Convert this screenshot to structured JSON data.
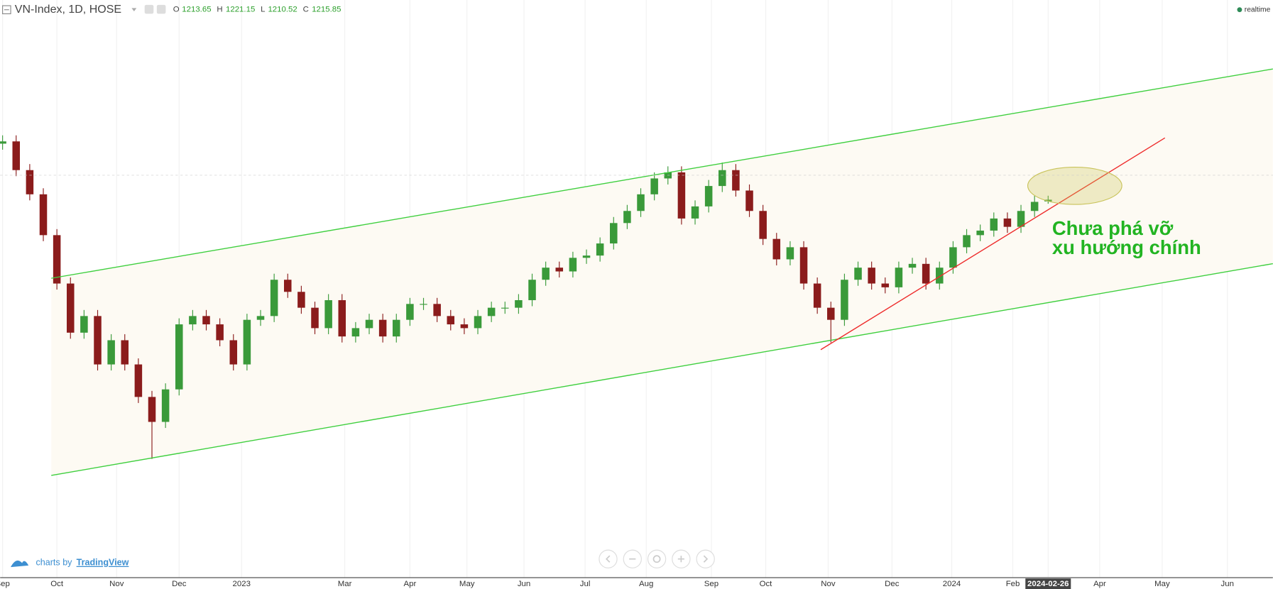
{
  "chart_data": {
    "type": "candlestick",
    "title": "VN-Index, 1D, HOSE",
    "legend_labels": [
      "O",
      "H",
      "L",
      "C"
    ],
    "status": "realtime",
    "annotation": [
      "Chưa phá vỡ",
      "xu hướng chính"
    ],
    "branding": [
      "charts by",
      "TradingView"
    ],
    "up_color": "#3a9a3a",
    "down_color": "#8b1c1c",
    "xlim": [
      -0.18,
      93.55
    ],
    "xticks": [
      {
        "value": 0,
        "label": "Sep"
      },
      {
        "value": 4.0,
        "label": "Oct"
      },
      {
        "value": 8.4,
        "label": "Nov"
      },
      {
        "value": 13.0,
        "label": "Dec"
      },
      {
        "value": 17.6,
        "label": "2023"
      },
      {
        "value": 25.2,
        "label": "Mar"
      },
      {
        "value": 30.0,
        "label": "Apr"
      },
      {
        "value": 34.2,
        "label": "May"
      },
      {
        "value": 38.4,
        "label": "Jun"
      },
      {
        "value": 42.9,
        "label": "Jul"
      },
      {
        "value": 47.4,
        "label": "Aug"
      },
      {
        "value": 52.2,
        "label": "Sep"
      },
      {
        "value": 56.2,
        "label": "Oct"
      },
      {
        "value": 60.8,
        "label": "Nov"
      },
      {
        "value": 65.5,
        "label": "Dec"
      },
      {
        "value": 69.9,
        "label": "2024"
      },
      {
        "value": 74.4,
        "label": "Feb"
      },
      {
        "value": 77,
        "label": "2024-02-26"
      },
      {
        "value": 80.8,
        "label": "Apr"
      },
      {
        "value": 85.4,
        "label": "May"
      },
      {
        "value": 90.2,
        "label": "Jun"
      }
    ],
    "ylim": [
      716,
      1480
    ],
    "grid": true,
    "ohlc": {
      "open": [
        1290,
        1293,
        1255,
        1223,
        1169,
        1105,
        1040,
        1062,
        998,
        1030,
        998,
        955,
        922,
        965,
        1051,
        1062,
        1051,
        1030,
        998,
        1057,
        1062,
        1110,
        1094,
        1073,
        1046,
        1083,
        1035,
        1046,
        1057,
        1035,
        1057,
        1078,
        1078,
        1062,
        1051,
        1046,
        1062,
        1073,
        1073,
        1083,
        1110,
        1126,
        1121,
        1139,
        1142,
        1158,
        1185,
        1201,
        1223,
        1244,
        1252,
        1191,
        1207,
        1234,
        1255,
        1228,
        1201,
        1164,
        1137,
        1153,
        1105,
        1073,
        1057,
        1110,
        1126,
        1105,
        1100,
        1126,
        1131,
        1105,
        1126,
        1153,
        1169,
        1175,
        1191,
        1180,
        1201,
        1213.65
      ],
      "high": [
        1301,
        1301,
        1263,
        1231,
        1177,
        1113,
        1070,
        1070,
        1038,
        1038,
        1006,
        963,
        973,
        1059,
        1070,
        1070,
        1059,
        1038,
        1065,
        1070,
        1118,
        1118,
        1102,
        1081,
        1091,
        1091,
        1054,
        1065,
        1065,
        1065,
        1086,
        1086,
        1086,
        1070,
        1059,
        1070,
        1081,
        1081,
        1091,
        1118,
        1134,
        1134,
        1147,
        1150,
        1166,
        1193,
        1209,
        1231,
        1252,
        1260,
        1260,
        1215,
        1242,
        1265,
        1263,
        1236,
        1209,
        1172,
        1161,
        1161,
        1113,
        1081,
        1118,
        1134,
        1134,
        1113,
        1134,
        1139,
        1139,
        1134,
        1161,
        1177,
        1183,
        1199,
        1199,
        1209,
        1221,
        1221.15
      ],
      "low": [
        1282,
        1247,
        1215,
        1161,
        1097,
        1032,
        1032,
        990,
        990,
        990,
        947,
        873,
        914,
        957,
        1043,
        1043,
        1022,
        990,
        990,
        1049,
        1054,
        1086,
        1065,
        1038,
        1038,
        1027,
        1027,
        1038,
        1027,
        1027,
        1049,
        1070,
        1054,
        1043,
        1038,
        1038,
        1054,
        1065,
        1065,
        1075,
        1102,
        1113,
        1113,
        1131,
        1134,
        1150,
        1177,
        1193,
        1215,
        1236,
        1183,
        1183,
        1199,
        1226,
        1220,
        1193,
        1156,
        1129,
        1129,
        1097,
        1065,
        1027,
        1049,
        1102,
        1097,
        1092,
        1092,
        1118,
        1097,
        1097,
        1118,
        1145,
        1161,
        1167,
        1172,
        1172,
        1193,
        1210.52
      ],
      "close": [
        1293,
        1255,
        1223,
        1169,
        1105,
        1040,
        1062,
        998,
        1030,
        998,
        955,
        922,
        965,
        1051,
        1062,
        1051,
        1030,
        998,
        1057,
        1062,
        1110,
        1094,
        1073,
        1046,
        1083,
        1035,
        1046,
        1057,
        1035,
        1057,
        1078,
        1078,
        1062,
        1051,
        1046,
        1062,
        1073,
        1073,
        1083,
        1110,
        1126,
        1121,
        1139,
        1142,
        1158,
        1185,
        1201,
        1223,
        1244,
        1252,
        1191,
        1207,
        1234,
        1255,
        1228,
        1201,
        1164,
        1137,
        1153,
        1105,
        1073,
        1057,
        1110,
        1126,
        1105,
        1100,
        1126,
        1131,
        1105,
        1126,
        1153,
        1169,
        1175,
        1191,
        1180,
        1201,
        1213,
        1215.85
      ]
    }
  }
}
